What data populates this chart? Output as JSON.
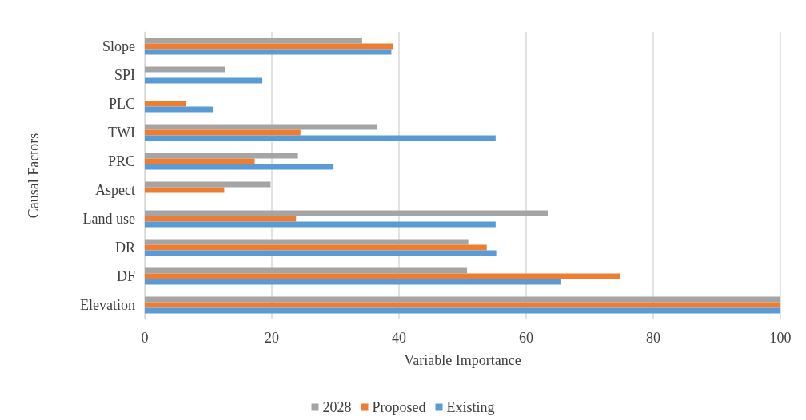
{
  "chart_data": {
    "type": "bar",
    "orientation": "horizontal",
    "xlabel": "Variable Importance",
    "ylabel": "Causal Factors",
    "categories": [
      "Slope",
      "SPI",
      "PLC",
      "TWI",
      "PRC",
      "Aspect",
      "Land use",
      "DR",
      "DF",
      "Elevation"
    ],
    "series": [
      {
        "name": "2028",
        "color": "#a5a5a5",
        "values": [
          34.2,
          12.7,
          null,
          36.6,
          24.1,
          19.8,
          63.4,
          50.9,
          50.7,
          100
        ]
      },
      {
        "name": "Proposed",
        "color": "#ed7d31",
        "values": [
          39,
          null,
          6.5,
          24.5,
          17.3,
          12.5,
          23.8,
          53.8,
          74.8,
          100
        ]
      },
      {
        "name": "Existing",
        "color": "#5b9bd5",
        "values": [
          38.8,
          18.5,
          10.7,
          55.2,
          29.7,
          null,
          55.2,
          55.3,
          65.4,
          100
        ]
      }
    ],
    "xlim": [
      0,
      100
    ],
    "xticks": [
      0,
      20,
      40,
      60,
      80,
      100
    ],
    "grid": "x",
    "legend": "bottom"
  }
}
